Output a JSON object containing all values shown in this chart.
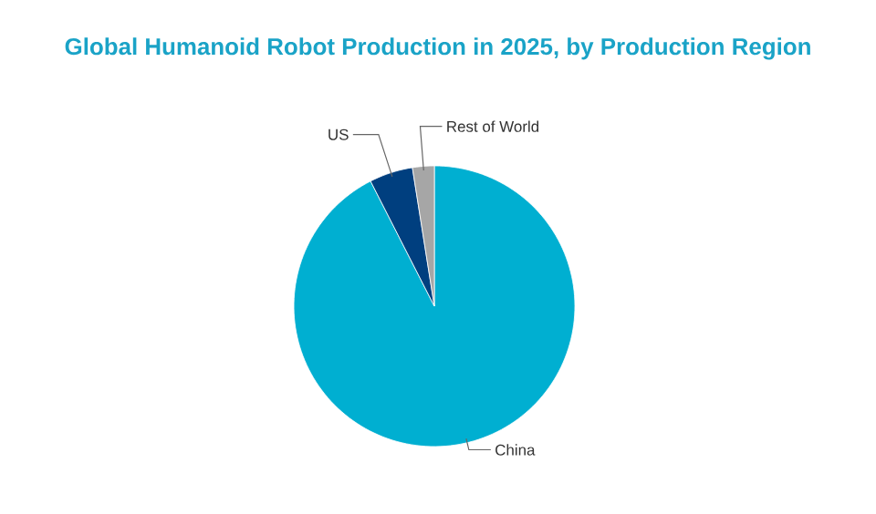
{
  "chart_data": {
    "type": "pie",
    "title": "Global Humanoid Robot Production in 2025, by Production Region",
    "categories": [
      "China",
      "US",
      "Rest of World"
    ],
    "values": [
      92.5,
      5,
      2.5
    ],
    "colors": [
      "#00afd1",
      "#003f7f",
      "#a6a6a6"
    ]
  }
}
